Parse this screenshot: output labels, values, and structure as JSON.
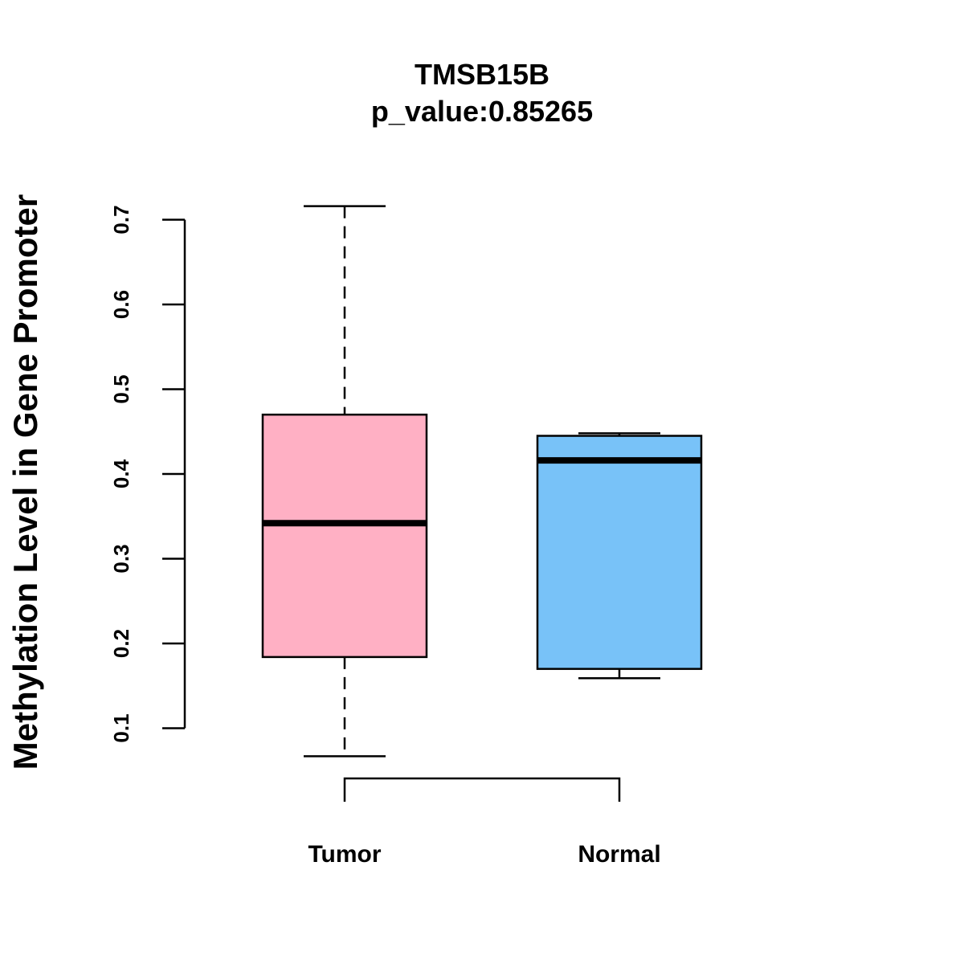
{
  "chart_data": {
    "type": "box",
    "title": "TMSB15B",
    "subtitle": "p_value:0.85265",
    "xlabel": "",
    "ylabel": "Methylation Level in Gene Promoter",
    "ylim": [
      0.1,
      0.7
    ],
    "yticks": [
      0.1,
      0.2,
      0.3,
      0.4,
      0.5,
      0.6,
      0.7
    ],
    "ytick_labels": [
      "0.1",
      "0.2",
      "0.3",
      "0.4",
      "0.5",
      "0.6",
      "0.7"
    ],
    "categories": [
      "Tumor",
      "Normal"
    ],
    "boxes": [
      {
        "name": "Tumor",
        "whisker_low": 0.067,
        "q1": 0.184,
        "median": 0.342,
        "q3": 0.47,
        "whisker_high": 0.716,
        "color": "#FFB0C4"
      },
      {
        "name": "Normal",
        "whisker_low": 0.159,
        "q1": 0.17,
        "median": 0.416,
        "q3": 0.445,
        "whisker_high": 0.448,
        "color": "#78C2F8"
      }
    ]
  }
}
